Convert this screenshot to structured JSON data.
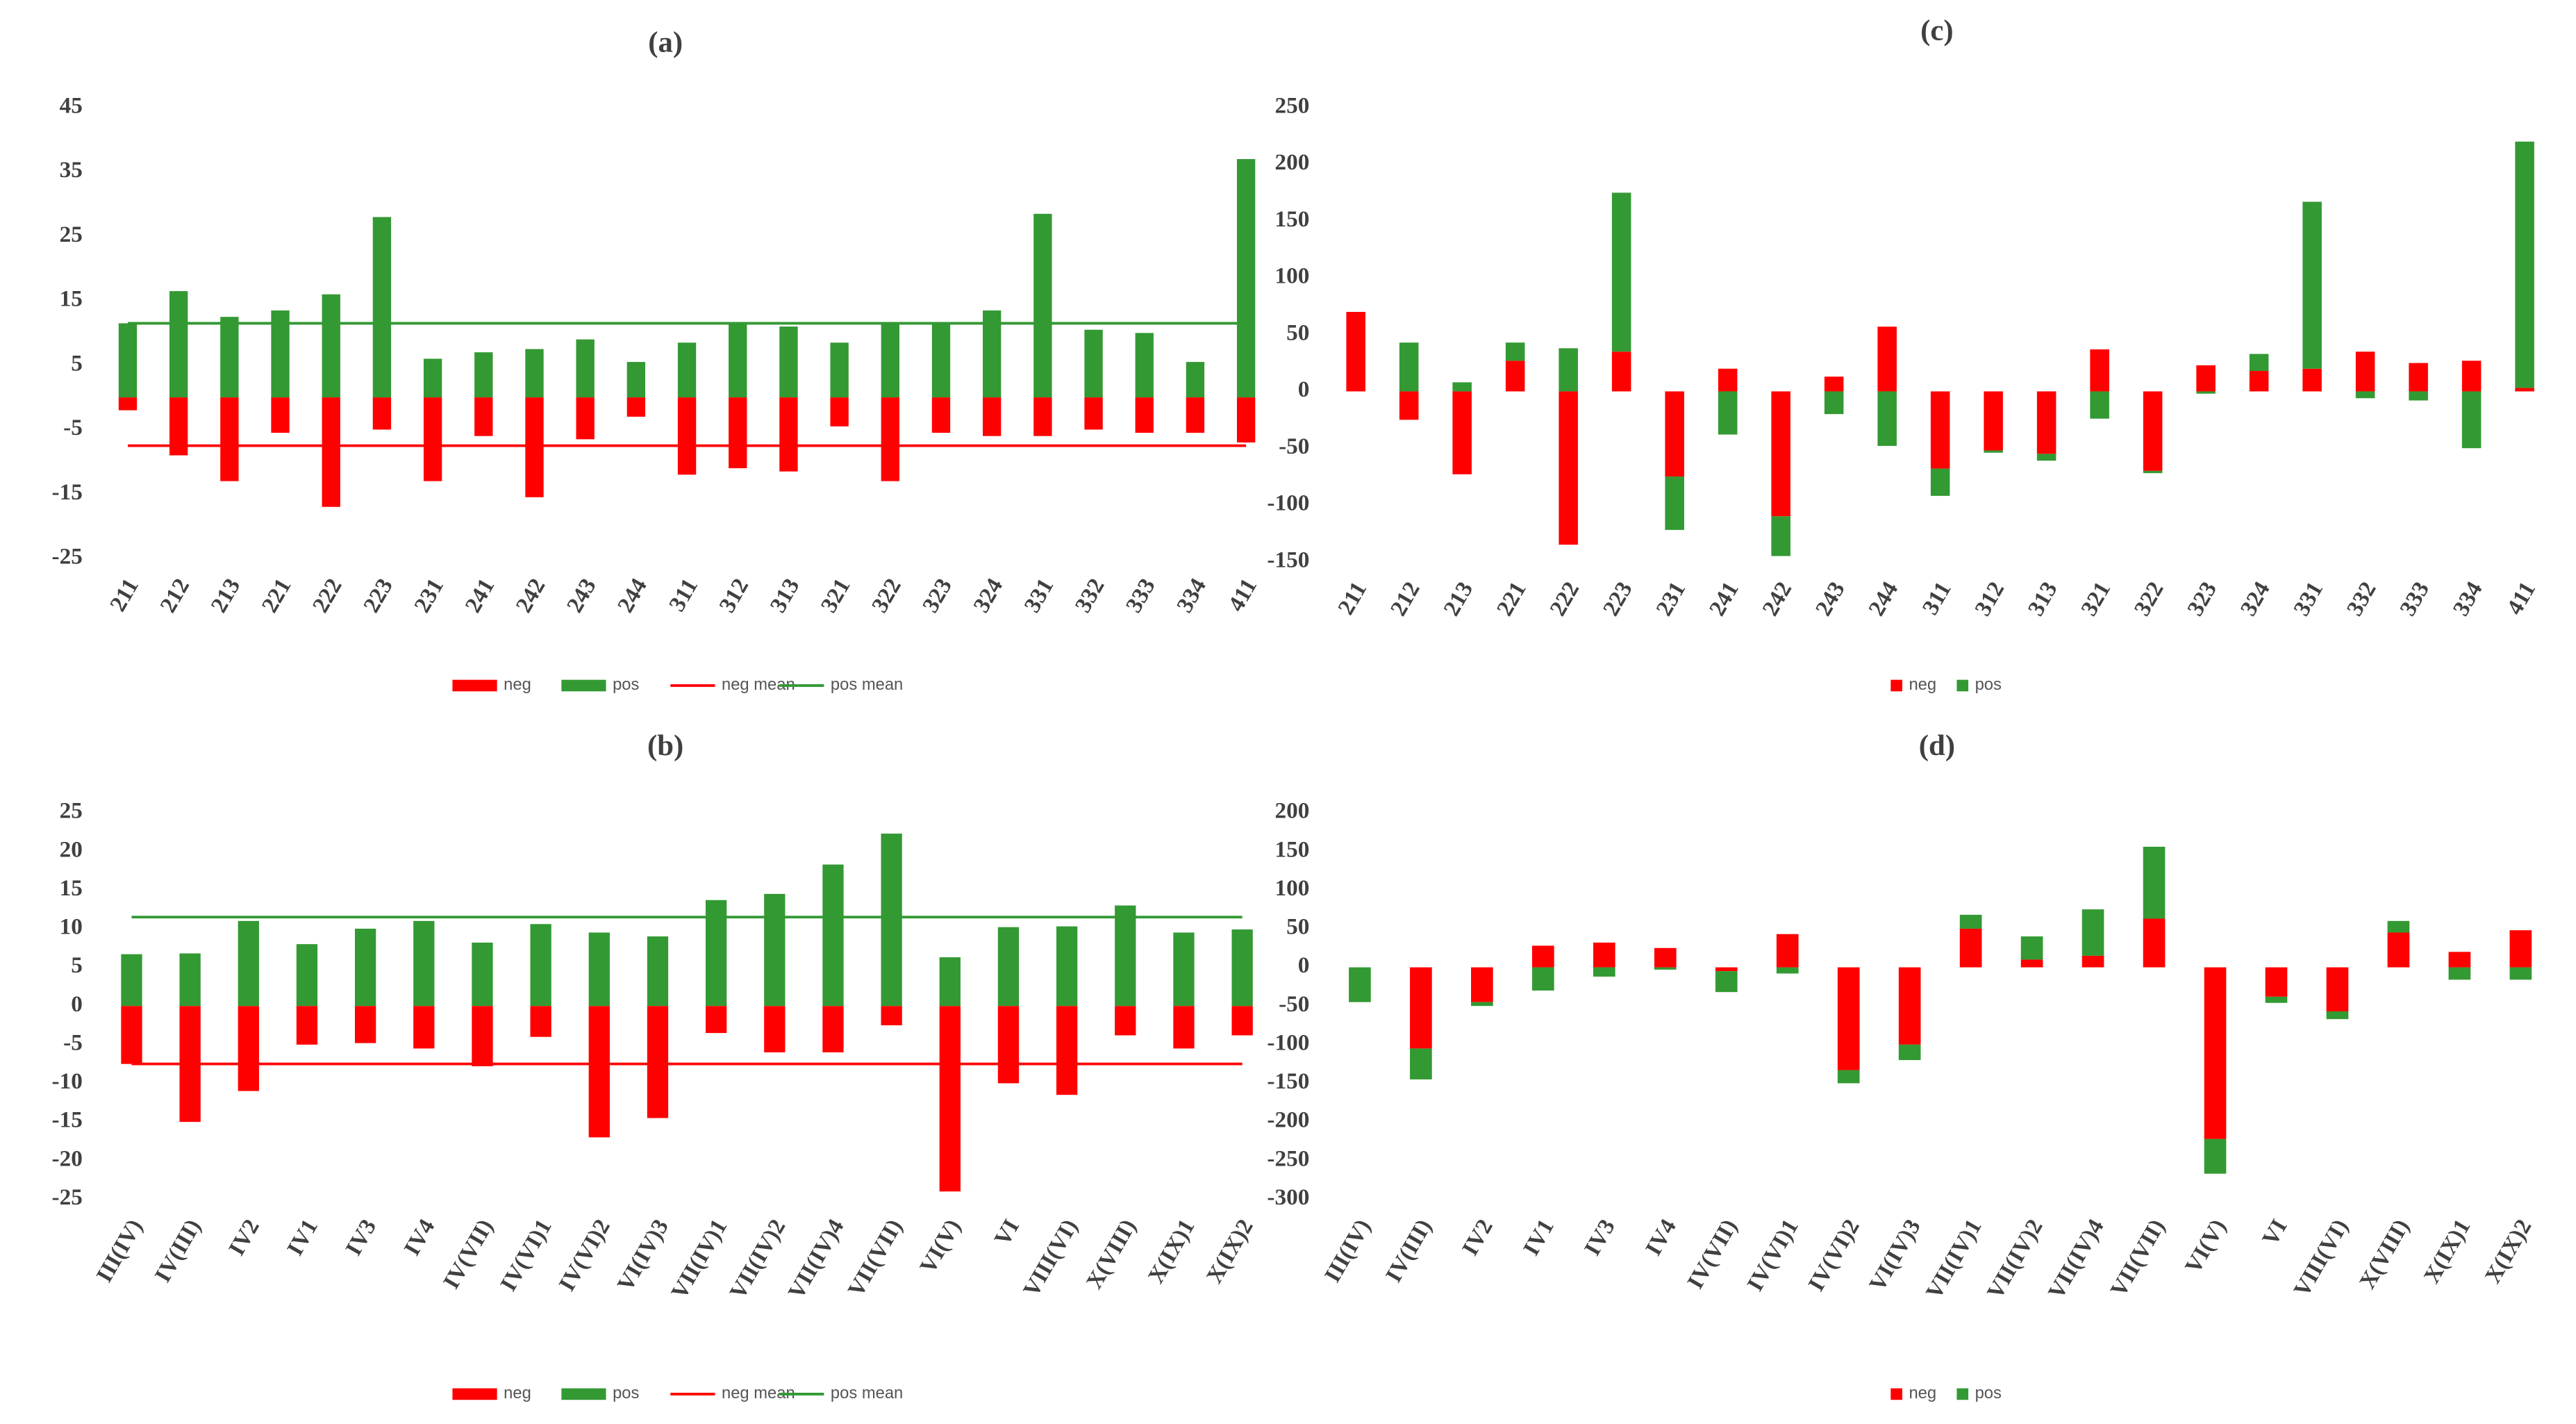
{
  "chart_data": [
    {
      "type": "bar",
      "title": "(a)",
      "stacked": false,
      "categories": [
        "211",
        "212",
        "213",
        "221",
        "222",
        "223",
        "231",
        "241",
        "242",
        "243",
        "244",
        "311",
        "312",
        "313",
        "321",
        "322",
        "323",
        "324",
        "331",
        "332",
        "333",
        "334",
        "411"
      ],
      "series": [
        {
          "name": "neg",
          "color": "#ff0000",
          "values": [
            -2,
            -9,
            -13,
            -5.5,
            -17,
            -5,
            -13,
            -6,
            -15.5,
            -6.5,
            -3,
            -12,
            -11,
            -11.5,
            -4.5,
            -13,
            -5.5,
            -6,
            -6,
            -5,
            -5.5,
            -5.5,
            -7
          ]
        },
        {
          "name": "pos",
          "color": "#339933",
          "values": [
            11.5,
            16.5,
            12.5,
            13.5,
            16,
            28,
            6,
            7,
            7.5,
            9,
            5.5,
            8.5,
            11.5,
            11,
            8.5,
            11.5,
            11.5,
            13.5,
            28.5,
            10.5,
            10,
            5.5,
            37
          ]
        },
        {
          "name": "neg mean",
          "type": "line",
          "color": "#ff0000",
          "values": [
            -7.5,
            -7.5,
            -7.5,
            -7.5,
            -7.5,
            -7.5,
            -7.5,
            -7.5,
            -7.5,
            -7.5,
            -7.5,
            -7.5,
            -7.5,
            -7.5,
            -7.5,
            -7.5,
            -7.5,
            -7.5,
            -7.5,
            -7.5,
            -7.5,
            -7.5,
            -7.5
          ]
        },
        {
          "name": "pos mean",
          "type": "line",
          "color": "#339933",
          "values": [
            11.5,
            11.5,
            11.5,
            11.5,
            11.5,
            11.5,
            11.5,
            11.5,
            11.5,
            11.5,
            11.5,
            11.5,
            11.5,
            11.5,
            11.5,
            11.5,
            11.5,
            11.5,
            11.5,
            11.5,
            11.5,
            11.5,
            11.5
          ]
        }
      ],
      "ylim": [
        -25,
        45
      ],
      "yticks": [
        -25,
        -15,
        -5,
        5,
        15,
        25,
        35,
        45
      ],
      "grid": false,
      "legend": "bottom"
    },
    {
      "type": "bar",
      "title": "(b)",
      "stacked": false,
      "categories": [
        "III(IV)",
        "IV(III)",
        "IV2",
        "IV1",
        "IV3",
        "IV4",
        "IV(VII)",
        "IV(VI)1",
        "IV(VI)2",
        "VI(IV)3",
        "VII(IV)1",
        "VII(IV)2",
        "VII(IV)4",
        "VII(VII)",
        "VI(V)",
        "VI",
        "VIII(VI)",
        "X(VIII)",
        "X(IX)1",
        "X(IX)2"
      ],
      "series": [
        {
          "name": "neg",
          "color": "#ff0000",
          "values": [
            -7.5,
            -15,
            -11,
            -5,
            -4.8,
            -5.5,
            -7.8,
            -4,
            -17,
            -14.5,
            -3.5,
            -6,
            -6,
            -2.5,
            -24,
            -10,
            -11.5,
            -3.8,
            -5.5,
            -3.8
          ]
        },
        {
          "name": "pos",
          "color": "#339933",
          "values": [
            6.7,
            6.8,
            11,
            8,
            10,
            11,
            8.2,
            10.6,
            9.5,
            9,
            13.7,
            14.5,
            18.3,
            22.3,
            6.3,
            10.2,
            10.3,
            13,
            9.5,
            9.9
          ]
        },
        {
          "name": "neg mean",
          "type": "line",
          "color": "#ff0000",
          "values": [
            -7.5,
            -7.5,
            -7.5,
            -7.5,
            -7.5,
            -7.5,
            -7.5,
            -7.5,
            -7.5,
            -7.5,
            -7.5,
            -7.5,
            -7.5,
            -7.5,
            -7.5,
            -7.5,
            -7.5,
            -7.5,
            -7.5,
            -7.5
          ]
        },
        {
          "name": "pos mean",
          "type": "line",
          "color": "#339933",
          "values": [
            11.5,
            11.5,
            11.5,
            11.5,
            11.5,
            11.5,
            11.5,
            11.5,
            11.5,
            11.5,
            11.5,
            11.5,
            11.5,
            11.5,
            11.5,
            11.5,
            11.5,
            11.5,
            11.5,
            11.5
          ]
        }
      ],
      "ylim": [
        -25,
        25
      ],
      "yticks": [
        -25,
        -20,
        -15,
        -10,
        -5,
        0,
        5,
        10,
        15,
        20,
        25
      ],
      "grid": false,
      "legend": "bottom"
    },
    {
      "type": "bar",
      "title": "(c)",
      "stacked": true,
      "categories": [
        "211",
        "212",
        "213",
        "221",
        "222",
        "223",
        "231",
        "241",
        "242",
        "243",
        "244",
        "311",
        "312",
        "313",
        "321",
        "322",
        "323",
        "324",
        "331",
        "332",
        "333",
        "334",
        "411"
      ],
      "series": [
        {
          "name": "neg",
          "color": "#ff0000",
          "values": [
            70,
            -25,
            -73,
            27,
            -135,
            35,
            -75,
            20,
            -110,
            13,
            57,
            -68,
            -52,
            -55,
            37,
            -70,
            23,
            18,
            20,
            35,
            25,
            27,
            3
          ]
        },
        {
          "name": "pos",
          "color": "#339933",
          "values": [
            0,
            43,
            8,
            16,
            38,
            140,
            -47,
            -38,
            -35,
            -20,
            -48,
            -24,
            -2,
            -6,
            -24,
            -2,
            -2,
            15,
            147,
            -6,
            -8,
            -50,
            217
          ]
        }
      ],
      "ylim": [
        -150,
        250
      ],
      "yticks": [
        -150,
        -100,
        -50,
        0,
        50,
        100,
        150,
        200,
        250
      ],
      "grid": false,
      "legend": "bottom"
    },
    {
      "type": "bar",
      "title": "(d)",
      "stacked": true,
      "categories": [
        "III(IV)",
        "IV(III)",
        "IV2",
        "IV1",
        "IV3",
        "IV4",
        "IV(VII)",
        "IV(VI)1",
        "IV(VI)2",
        "VI(IV)3",
        "VII(IV)1",
        "VII(IV)2",
        "VII(IV)4",
        "VII(VII)",
        "VI(V)",
        "VI",
        "VIII(VI)",
        "X(VIII)",
        "X(IX)1",
        "X(IX)2"
      ],
      "series": [
        {
          "name": "neg",
          "color": "#ff0000",
          "values": [
            0,
            -105,
            -45,
            28,
            32,
            25,
            -5,
            43,
            -133,
            -100,
            50,
            10,
            15,
            63,
            -222,
            -38,
            -57,
            45,
            20,
            48
          ]
        },
        {
          "name": "pos",
          "color": "#339933",
          "values": [
            -45,
            -40,
            -5,
            -30,
            -12,
            -3,
            -27,
            -8,
            -17,
            -20,
            18,
            30,
            60,
            93,
            -45,
            -8,
            -10,
            15,
            -16,
            -16
          ]
        }
      ],
      "ylim": [
        -300,
        200
      ],
      "yticks": [
        -300,
        -250,
        -200,
        -150,
        -100,
        -50,
        0,
        50,
        100,
        150,
        200
      ],
      "grid": false,
      "legend": "bottom"
    }
  ]
}
